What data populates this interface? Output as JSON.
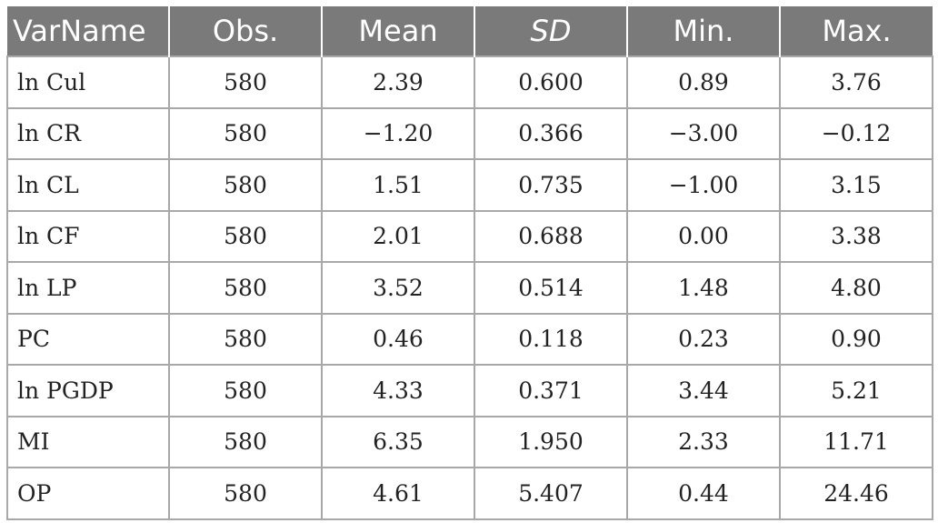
{
  "table": {
    "headers": [
      "VarName",
      "Obs.",
      "Mean",
      "SD",
      "Min.",
      "Max."
    ],
    "rows": [
      [
        "ln Cul",
        "580",
        "2.39",
        "0.600",
        "0.89",
        "3.76"
      ],
      [
        "ln CR",
        "580",
        "−1.20",
        "0.366",
        "−3.00",
        "−0.12"
      ],
      [
        "ln CL",
        "580",
        "1.51",
        "0.735",
        "−1.00",
        "3.15"
      ],
      [
        "ln CF",
        "580",
        "2.01",
        "0.688",
        "0.00",
        "3.38"
      ],
      [
        "ln LP",
        "580",
        "3.52",
        "0.514",
        "1.48",
        "4.80"
      ],
      [
        "PC",
        "580",
        "0.46",
        "0.118",
        "0.23",
        "0.90"
      ],
      [
        "ln PGDP",
        "580",
        "4.33",
        "0.371",
        "3.44",
        "5.21"
      ],
      [
        "MI",
        "580",
        "6.35",
        "1.950",
        "2.33",
        "11.71"
      ],
      [
        "OP",
        "580",
        "4.61",
        "5.407",
        "0.44",
        "24.46"
      ]
    ]
  },
  "colors": {
    "header_bg": "#7a7a7a",
    "header_text": "#ffffff",
    "grid": "#a8a8a8",
    "cell_text": "#222222"
  }
}
